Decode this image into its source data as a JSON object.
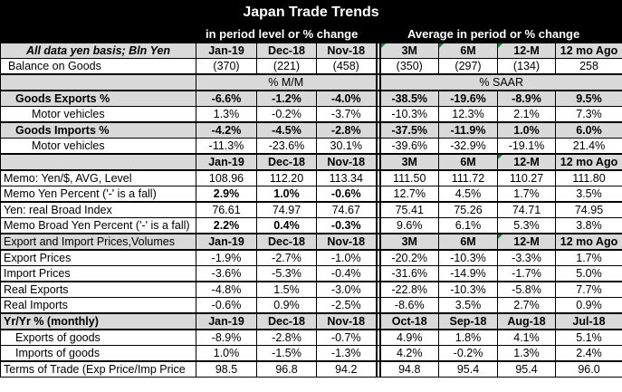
{
  "title": "Japan Trade Trends",
  "header": {
    "left": "in period level or % change",
    "right": "Average in period or % change"
  },
  "columns_a": {
    "label": "All data yen basis; Bln Yen",
    "c": [
      "Jan-19",
      "Dec-18",
      "Nov-18",
      "3M",
      "6M",
      "12-M",
      "12 mo Ago"
    ]
  },
  "balance": {
    "label": "Balance on Goods",
    "v": [
      "(370)",
      "(221)",
      "(458)",
      "(350)",
      "(297)",
      "(134)",
      "258"
    ]
  },
  "pct_header": {
    "left": "% M/M",
    "right": "% SAAR"
  },
  "goods_exports": {
    "label": "Goods Exports %",
    "v": [
      "-6.6%",
      "-1.2%",
      "-4.0%",
      "-38.5%",
      "-19.6%",
      "-8.9%",
      "9.5%"
    ]
  },
  "motor_exports": {
    "label": "Motor vehicles",
    "v": [
      "1.3%",
      "-0.2%",
      "-3.7%",
      "-10.3%",
      "12.3%",
      "2.1%",
      "7.3%"
    ]
  },
  "goods_imports": {
    "label": "Goods Imports %",
    "v": [
      "-4.2%",
      "-4.5%",
      "-2.8%",
      "-37.5%",
      "-11.9%",
      "1.0%",
      "6.0%"
    ]
  },
  "motor_imports": {
    "label": "Motor vehicles",
    "v": [
      "-11.3%",
      "-23.6%",
      "30.1%",
      "-39.6%",
      "-32.9%",
      "-19.1%",
      "21.4%"
    ]
  },
  "columns_b": {
    "c": [
      "Jan-19",
      "Dec-18",
      "Nov-18",
      "3M",
      "6M",
      "12-M",
      "12 mo Ago"
    ]
  },
  "memo_yen": {
    "label": "Memo: Yen/$, AVG, Level",
    "v": [
      "108.96",
      "112.20",
      "113.34",
      "111.50",
      "111.72",
      "110.27",
      "111.80"
    ]
  },
  "memo_yen_pct": {
    "label": "Memo Yen Percent ('-' is a fall)",
    "v": [
      "2.9%",
      "1.0%",
      "-0.6%",
      "12.7%",
      "4.5%",
      "1.7%",
      "3.5%"
    ]
  },
  "broad_index": {
    "label": "Yen: real Broad Index",
    "v": [
      "76.61",
      "74.97",
      "74.67",
      "75.41",
      "75.26",
      "74.71",
      "74.95"
    ]
  },
  "broad_pct": {
    "label": "Memo Broad Yen Percent ('-' is a fall)",
    "v": [
      "2.2%",
      "0.4%",
      "-0.3%",
      "9.6%",
      "6.1%",
      "5.3%",
      "3.8%"
    ]
  },
  "columns_c": {
    "label": "Export and Import Prices,Volumes",
    "c": [
      "Jan-19",
      "Dec-18",
      "Nov-18",
      "3M",
      "6M",
      "12-M",
      "12 mo Ago"
    ]
  },
  "export_prices": {
    "label": "Export Prices",
    "v": [
      "-1.9%",
      "-2.7%",
      "-1.0%",
      "-20.2%",
      "-10.3%",
      "-3.3%",
      "1.7%"
    ]
  },
  "import_prices": {
    "label": "Import Prices",
    "v": [
      "-3.6%",
      "-5.3%",
      "-0.4%",
      "-31.6%",
      "-14.9%",
      "-1.7%",
      "5.0%"
    ]
  },
  "real_exports": {
    "label": "Real Exports",
    "v": [
      "-4.8%",
      "1.5%",
      "-3.0%",
      "-22.8%",
      "-10.3%",
      "-5.8%",
      "7.7%"
    ]
  },
  "real_imports": {
    "label": "Real Imports",
    "v": [
      "-0.6%",
      "0.9%",
      "-2.5%",
      "-8.6%",
      "3.5%",
      "2.7%",
      "0.9%"
    ]
  },
  "columns_d": {
    "label": "Yr/Yr % (monthly)",
    "c": [
      "Jan-19",
      "Dec-18",
      "Nov-18",
      "Oct-18",
      "Sep-18",
      "Aug-18",
      "Jul-18"
    ]
  },
  "yy_exports": {
    "label": "Exports of goods",
    "v": [
      "-8.9%",
      "-2.8%",
      "-0.7%",
      "4.9%",
      "1.8%",
      "4.1%",
      "5.1%"
    ]
  },
  "yy_imports": {
    "label": "Imports of goods",
    "v": [
      "1.0%",
      "-1.5%",
      "-1.3%",
      "4.2%",
      "-0.2%",
      "1.3%",
      "2.4%"
    ]
  },
  "terms": {
    "label": "Terms of Trade (Exp Price/Imp Price",
    "v": [
      "98.5",
      "96.8",
      "94.2",
      "94.8",
      "95.4",
      "95.4",
      "96.0"
    ]
  }
}
